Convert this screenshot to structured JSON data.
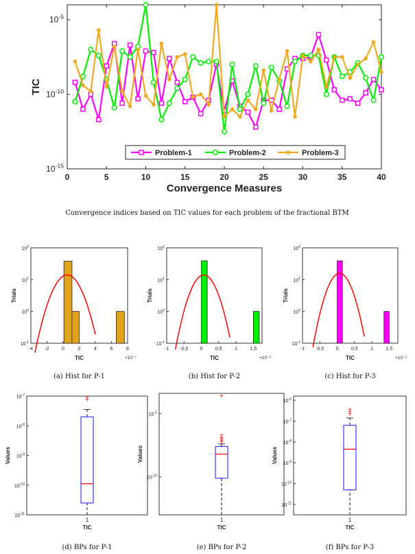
{
  "caption_main": "Convergence indices based on TIC values for each problem of the fractional BTM",
  "colors": {
    "p1": "#ff00ff",
    "p2": "#00ee00",
    "p3": "#eeaa22",
    "hist1": "#e2a21b",
    "hist2": "#00ee00",
    "hist3": "#ff00ff",
    "fit": "#ff0000",
    "box": "#3a3aff",
    "median": "#ff0000",
    "outlier": "#ff0000"
  },
  "chart_data": [
    {
      "id": "main",
      "type": "line",
      "xlabel": "Convergence Measures",
      "ylabel": "TIC",
      "yscale": "log",
      "xlim": [
        0,
        40
      ],
      "ylim_exp": [
        -15,
        -4
      ],
      "xticks": [
        "0",
        "5",
        "10",
        "15",
        "20",
        "25",
        "30",
        "35",
        "40"
      ],
      "yticks": [
        {
          "base": "10",
          "exp": "-5",
          "v": -5
        },
        {
          "base": "10",
          "exp": "-10",
          "v": -10
        },
        {
          "base": "10",
          "exp": "-15",
          "v": -15
        }
      ],
      "legend_position": "bottom",
      "legend": [
        "Problem-1",
        "Problem-2",
        "Problem-3"
      ],
      "x": [
        1,
        2,
        3,
        4,
        5,
        6,
        7,
        8,
        9,
        10,
        11,
        12,
        13,
        14,
        15,
        16,
        17,
        18,
        19,
        20,
        21,
        22,
        23,
        24,
        25,
        26,
        27,
        28,
        29,
        30,
        31,
        32,
        33,
        34,
        35,
        36,
        37,
        38,
        39,
        40
      ],
      "series": [
        {
          "name": "Problem-1",
          "log10_values": [
            -9.2,
            -11.0,
            -10.0,
            -11.7,
            -8.1,
            -6.6,
            -10.6,
            -6.7,
            -10.3,
            -7.1,
            -7.2,
            -10.6,
            -7.6,
            -9.2,
            -10.5,
            -10.2,
            -11.3,
            -10.4,
            -8.0,
            -11.1,
            -9.1,
            -10.8,
            -11.2,
            -12.2,
            -10.4,
            -10.4,
            -11.0,
            -8.3,
            -7.6,
            -7.6,
            -7.5,
            -6.0,
            -7.7,
            -9.7,
            -10.4,
            -10.3,
            -10.6,
            -9.9,
            -9.0,
            -9.7
          ]
        },
        {
          "name": "Problem-2",
          "log10_values": [
            -10.5,
            -8.8,
            -7.0,
            -7.4,
            -9.0,
            -10.9,
            -7.1,
            -7.5,
            -6.8,
            -4.0,
            -9.2,
            -11.7,
            -10.6,
            -9.6,
            -9.0,
            -7.5,
            -7.9,
            -7.8,
            -7.8,
            -12.5,
            -8.0,
            -11.0,
            -10.0,
            -8.1,
            -10.6,
            -8.2,
            -9.1,
            -10.8,
            -7.8,
            -7.4,
            -7.4,
            -7.4,
            -10.0,
            -7.5,
            -8.8,
            -8.5,
            -7.9,
            -8.9,
            -10.4,
            -7.5
          ]
        },
        {
          "name": "Problem-3",
          "log10_values": [
            -7.8,
            -9.4,
            -9.8,
            -5.7,
            -9.5,
            -6.8,
            -9.8,
            -10.8,
            -7.0,
            -10.1,
            -10.7,
            -6.6,
            -9.0,
            -7.5,
            -7.3,
            -10.2,
            -10.0,
            -10.7,
            -4.0,
            -11.5,
            -11.0,
            -11.5,
            -10.4,
            -11.0,
            -8.4,
            -11.1,
            -9.0,
            -7.1,
            -11.5,
            -7.4,
            -7.8,
            -7.0,
            -9.5,
            -7.5,
            -7.5,
            -8.9,
            -8.0,
            -7.6,
            -6.5,
            -8.5
          ]
        }
      ]
    },
    {
      "id": "hist1",
      "type": "bar",
      "caption": "(a) Hist for P-1",
      "xlabel": "TIC",
      "ylabel": "Trials",
      "yscale": "log",
      "xticks": [
        "-4",
        "-2",
        "0",
        "2",
        "4",
        "6",
        "8"
      ],
      "xlim": [
        -4,
        8
      ],
      "x_multiplier": "×10⁻⁷",
      "yticks": [
        {
          "base": "10",
          "exp": "2",
          "v": 2
        },
        {
          "base": "10",
          "exp": "1",
          "v": 1
        },
        {
          "base": "10",
          "exp": "0",
          "v": 0
        },
        {
          "base": "10",
          "exp": "-1",
          "v": -1
        }
      ],
      "bins": [
        {
          "from": 0.1,
          "to": 1.1,
          "count": 38
        },
        {
          "from": 1.1,
          "to": 2.0,
          "count": 1
        },
        {
          "from": 6.6,
          "to": 7.6,
          "count": 1
        }
      ],
      "fit_peak_x": 0.5,
      "fit_peak_log": 1.15,
      "fit_range": [
        -3.5,
        4.0
      ]
    },
    {
      "id": "hist2",
      "type": "bar",
      "caption": "(b) Hist for P-2",
      "xlabel": "TIC",
      "ylabel": "Trials",
      "yscale": "log",
      "xticks": [
        "-1",
        "-0.5",
        "0",
        "0.5",
        "1",
        "1.5"
      ],
      "xlim": [
        -1,
        1.75
      ],
      "x_multiplier": "×10⁻⁵",
      "yticks": [
        {
          "base": "10",
          "exp": "2",
          "v": 2
        },
        {
          "base": "10",
          "exp": "1",
          "v": 1
        },
        {
          "base": "10",
          "exp": "0",
          "v": 0
        },
        {
          "base": "10",
          "exp": "-1",
          "v": -1
        }
      ],
      "bins": [
        {
          "from": 0.0,
          "to": 0.17,
          "count": 39
        },
        {
          "from": 1.5,
          "to": 1.67,
          "count": 1
        }
      ],
      "fit_peak_x": 0.07,
      "fit_peak_log": 1.15,
      "fit_range": [
        -0.75,
        0.82
      ]
    },
    {
      "id": "hist3",
      "type": "bar",
      "caption": "(c) Hist for P-3",
      "xlabel": "TIC",
      "ylabel": "Trials",
      "yscale": "log",
      "xticks": [
        "-1",
        "-0.5",
        "0",
        "0.5",
        "1",
        "1.5"
      ],
      "xlim": [
        -1,
        1.75
      ],
      "x_multiplier": "×10⁻⁵",
      "yticks": [
        {
          "base": "10",
          "exp": "2",
          "v": 2
        },
        {
          "base": "10",
          "exp": "1",
          "v": 1
        },
        {
          "base": "10",
          "exp": "0",
          "v": 0
        },
        {
          "base": "10",
          "exp": "-1",
          "v": -1
        }
      ],
      "bins": [
        {
          "from": 0.0,
          "to": 0.15,
          "count": 39
        },
        {
          "from": 1.35,
          "to": 1.5,
          "count": 1
        }
      ],
      "fit_peak_x": 0.07,
      "fit_peak_log": 1.2,
      "fit_range": [
        -0.7,
        0.78
      ]
    },
    {
      "id": "box1",
      "type": "box",
      "caption": "(d) BPs for P-1",
      "xlabel": "TIC",
      "ylabel": "Values",
      "category": "1",
      "yscale": "log",
      "ylim_exp": [
        -11,
        -7
      ],
      "yticks": [
        {
          "base": "10",
          "exp": "-7",
          "v": -7
        },
        {
          "base": "10",
          "exp": "-8",
          "v": -8
        },
        {
          "base": "10",
          "exp": "-9",
          "v": -9
        },
        {
          "base": "10",
          "exp": "-10",
          "v": -10
        },
        {
          "base": "10",
          "exp": "-11",
          "v": -11
        }
      ],
      "whisker_low": -11.0,
      "q1": -10.6,
      "median": -9.95,
      "q3": -7.7,
      "whisker_high": -7.45,
      "outliers": [
        -7.05,
        -7.12
      ]
    },
    {
      "id": "box2",
      "type": "box",
      "caption": "(e) BPs for P-2",
      "xlabel": "TIC",
      "ylabel": "Values",
      "category": "1",
      "yscale": "log",
      "ylim_exp": [
        -13,
        -3.4
      ],
      "yticks": [
        {
          "base": "10",
          "exp": "-5",
          "v": -5
        },
        {
          "base": "10",
          "exp": "-10",
          "v": -10
        }
      ],
      "whisker_low": -13.0,
      "q1": -10.1,
      "median": -8.2,
      "q3": -7.6,
      "whisker_high": -7.4,
      "outliers": [
        -3.6,
        -6.7,
        -6.9,
        -7.0,
        -7.15,
        -7.25
      ]
    },
    {
      "id": "box3",
      "type": "box",
      "caption": "(f) BPs for P-3",
      "xlabel": "TIC",
      "ylabel": "Values",
      "category": "1",
      "yscale": "log",
      "ylim_exp": [
        -11.5,
        -5.8
      ],
      "yticks": [
        {
          "base": "10",
          "exp": "-6",
          "v": -6
        },
        {
          "base": "10",
          "exp": "-7",
          "v": -7
        },
        {
          "base": "10",
          "exp": "-8",
          "v": -8
        },
        {
          "base": "10",
          "exp": "-9",
          "v": -9
        },
        {
          "base": "10",
          "exp": "-10",
          "v": -10
        },
        {
          "base": "10",
          "exp": "-11",
          "v": -11
        }
      ],
      "whisker_low": -11.5,
      "q1": -10.3,
      "median": -8.35,
      "q3": -7.2,
      "whisker_high": -6.85,
      "outliers": [
        -6.45,
        -6.55,
        -6.65
      ]
    }
  ]
}
